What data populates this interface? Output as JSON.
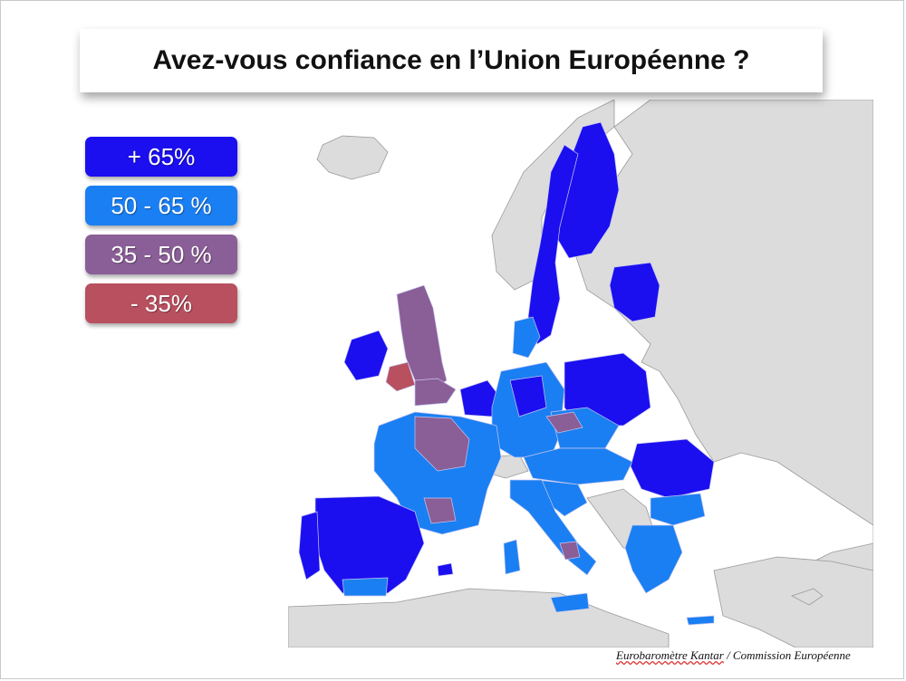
{
  "title": "Avez-vous confiance en l’Union Européenne ?",
  "legend": [
    {
      "label": "+ 65%",
      "color": "#1b0ff0"
    },
    {
      "label": "50 - 65 %",
      "color": "#1a7ff2"
    },
    {
      "label": "35 - 50 %",
      "color": "#8a5e96"
    },
    {
      "label": "- 35%",
      "color": "#b8505f"
    }
  ],
  "colors": {
    "sea": "#ffffff",
    "non_eu_land": "#dcdcdc",
    "high": "#1b0ff0",
    "mid_high": "#1a7ff2",
    "mid_low": "#8a5e96",
    "low": "#b8505f"
  },
  "source": {
    "part1": "Eurobaromètre Kantar",
    "part2": " / Commission Européenne"
  }
}
